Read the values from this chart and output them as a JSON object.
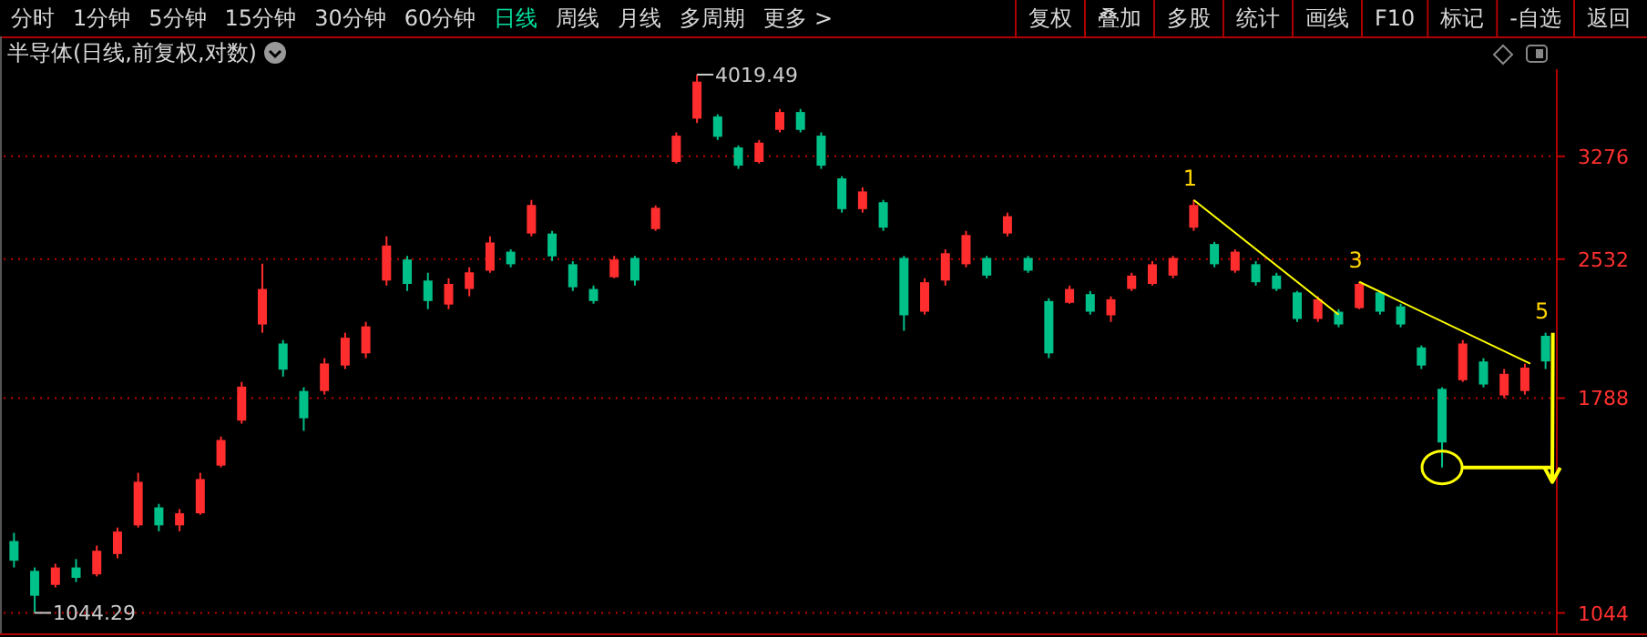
{
  "chart_data": {
    "type": "candlestick",
    "title": "半导体(日线,前复权,对数)",
    "categories": [
      null,
      null,
      null,
      null,
      null,
      null,
      null,
      null,
      null,
      null,
      null,
      null,
      null,
      null,
      null,
      null,
      null,
      null,
      null,
      null,
      null,
      null,
      null,
      null,
      null,
      null,
      null,
      null,
      null,
      null,
      null,
      null,
      null,
      null,
      null,
      null,
      null,
      null,
      null,
      null,
      null,
      null,
      null,
      null,
      null,
      null,
      null,
      null,
      null,
      null,
      null,
      null,
      null,
      null,
      null,
      null,
      null,
      null,
      null,
      null,
      null,
      null,
      null,
      null,
      null,
      null,
      null,
      null,
      null,
      null,
      null,
      null,
      null,
      null,
      null
    ],
    "ohlc": [
      [
        1250,
        1276,
        1170,
        1190
      ],
      [
        1160,
        1170,
        1044.29,
        1090
      ],
      [
        1120,
        1181,
        1113,
        1170
      ],
      [
        1170,
        1195,
        1128,
        1140
      ],
      [
        1150,
        1236,
        1144,
        1220
      ],
      [
        1210,
        1293,
        1197,
        1280
      ],
      [
        1300,
        1483,
        1293,
        1450
      ],
      [
        1360,
        1372,
        1281,
        1300
      ],
      [
        1300,
        1354,
        1281,
        1340
      ],
      [
        1340,
        1483,
        1335,
        1460
      ],
      [
        1510,
        1624,
        1503,
        1610
      ],
      [
        1690,
        1862,
        1677,
        1840
      ],
      [
        2150,
        2504,
        2106,
        2350
      ],
      [
        2050,
        2068,
        1887,
        1920
      ],
      [
        1820,
        1837,
        1647,
        1700
      ],
      [
        1820,
        1976,
        1804,
        1950
      ],
      [
        1940,
        2106,
        1923,
        2080
      ],
      [
        2000,
        2164,
        1976,
        2140
      ],
      [
        2400,
        2681,
        2370,
        2620
      ],
      [
        2530,
        2553,
        2338,
        2380
      ],
      [
        2400,
        2447,
        2234,
        2280
      ],
      [
        2260,
        2414,
        2234,
        2380
      ],
      [
        2350,
        2481,
        2307,
        2450
      ],
      [
        2460,
        2681,
        2447,
        2640
      ],
      [
        2580,
        2595,
        2481,
        2500
      ],
      [
        2700,
        2937,
        2681,
        2900
      ],
      [
        2700,
        2718,
        2520,
        2550
      ],
      [
        2500,
        2520,
        2338,
        2360
      ],
      [
        2350,
        2370,
        2265,
        2280
      ],
      [
        2420,
        2553,
        2414,
        2530
      ],
      [
        2540,
        2553,
        2370,
        2400
      ],
      [
        2730,
        2897,
        2718,
        2880
      ],
      [
        3230,
        3478,
        3217,
        3450
      ],
      [
        3600,
        4019.49,
        3561,
        3950
      ],
      [
        3620,
        3640,
        3413,
        3440
      ],
      [
        3350,
        3367,
        3175,
        3200
      ],
      [
        3230,
        3413,
        3217,
        3390
      ],
      [
        3500,
        3688,
        3478,
        3660
      ],
      [
        3660,
        3688,
        3478,
        3500
      ],
      [
        3450,
        3478,
        3175,
        3200
      ],
      [
        3100,
        3117,
        2845,
        2870
      ],
      [
        2870,
        3031,
        2845,
        3000
      ],
      [
        2920,
        2937,
        2718,
        2740
      ],
      [
        2540,
        2553,
        2116,
        2200
      ],
      [
        2220,
        2414,
        2204,
        2390
      ],
      [
        2400,
        2595,
        2370,
        2570
      ],
      [
        2500,
        2718,
        2481,
        2690
      ],
      [
        2540,
        2553,
        2414,
        2430
      ],
      [
        2700,
        2845,
        2681,
        2820
      ],
      [
        2540,
        2553,
        2447,
        2460
      ],
      [
        2280,
        2296,
        1976,
        2000
      ],
      [
        2270,
        2370,
        2265,
        2350
      ],
      [
        2320,
        2338,
        2204,
        2220
      ],
      [
        2200,
        2307,
        2164,
        2290
      ],
      [
        2350,
        2447,
        2338,
        2430
      ],
      [
        2380,
        2520,
        2370,
        2500
      ],
      [
        2430,
        2553,
        2414,
        2540
      ],
      [
        2740,
        2937,
        2718,
        2900
      ],
      [
        2630,
        2644,
        2481,
        2500
      ],
      [
        2460,
        2595,
        2447,
        2580
      ],
      [
        2500,
        2520,
        2370,
        2390
      ],
      [
        2430,
        2447,
        2338,
        2350
      ],
      [
        2330,
        2338,
        2164,
        2180
      ],
      [
        2180,
        2307,
        2164,
        2290
      ],
      [
        2220,
        2234,
        2135,
        2150
      ],
      [
        2240,
        2392,
        2234,
        2380
      ],
      [
        2330,
        2338,
        2204,
        2220
      ],
      [
        2250,
        2265,
        2135,
        2150
      ],
      [
        2030,
        2040,
        1923,
        1940
      ],
      [
        1830,
        1837,
        1503,
        1600
      ],
      [
        1870,
        2068,
        1862,
        2050
      ],
      [
        1960,
        1976,
        1837,
        1850
      ],
      [
        1800,
        1923,
        1788,
        1900
      ],
      [
        1820,
        1949,
        1804,
        1930
      ],
      [
        2090,
        2106,
        1923,
        1960
      ]
    ],
    "ylim": [
      992,
      4075
    ],
    "yticks": [
      1044,
      1788,
      2532,
      3276
    ],
    "log": true,
    "grid": "y",
    "tick_labels": "y",
    "annotations": [
      "4019.49",
      "1044.29",
      "1",
      "3",
      "5",
      "分时",
      "1分钟",
      "5分钟",
      "15分钟",
      "30分钟",
      "60分钟",
      "日线",
      "周线",
      "月线",
      "多周期",
      "更多 >",
      "复权",
      "叠加",
      "多股",
      "统计",
      "画线",
      "F10",
      "标记",
      "-自选",
      "返回"
    ]
  }
}
